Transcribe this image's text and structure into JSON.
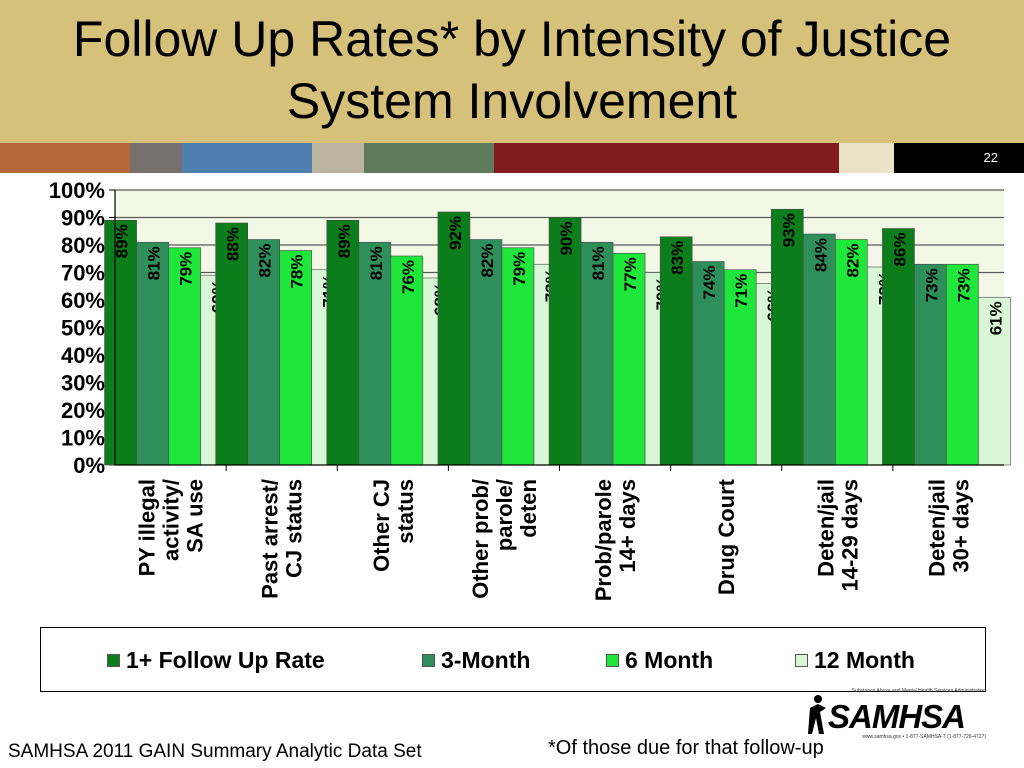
{
  "slide": {
    "title": "Follow Up Rates* by Intensity of Justice\nSystem Involvement",
    "slide_number": "22",
    "footer_source": "SAMHSA 2011 GAIN Summary Analytic Data Set",
    "footnote": "*Of those due for that follow-up",
    "logo": {
      "wordmark": "SAMHSA",
      "tagline": "Substance Abuse and Mental Health Services Administration",
      "contact": "www.samhsa.gov • 1-877-SAMHSA-7 (1-877-726-4727)"
    },
    "stripe_colors": [
      "#b5673b",
      "#76706e",
      "#4f7fae",
      "#bcb3a1",
      "#5f7b5c",
      "#7f1b1f",
      "#e9e2c7",
      "#000000"
    ]
  },
  "chart_data": {
    "type": "bar",
    "categories": [
      "PY illegal activity/ SA use",
      "Past arrest/ CJ status",
      "Other CJ status",
      "Other prob/ parole/ deten",
      "Prob/parole 14+ days",
      "Drug Court",
      "Deten/jail 14-29 days",
      "Deten/jail 30+ days"
    ],
    "category_lines": [
      [
        "PY illegal",
        "activity/",
        "SA use"
      ],
      [
        "Past arrest/",
        "CJ status"
      ],
      [
        "Other CJ",
        "status"
      ],
      [
        "Other prob/",
        "parole/",
        "deten"
      ],
      [
        "Prob/parole",
        "14+ days"
      ],
      [
        "Drug Court"
      ],
      [
        "Deten/jail",
        "14-29 days"
      ],
      [
        "Deten/jail",
        "30+ days"
      ]
    ],
    "series": [
      {
        "name": "1+ Follow Up Rate",
        "color": "#0b7d1a",
        "values": [
          89,
          88,
          89,
          92,
          90,
          83,
          93,
          86
        ]
      },
      {
        "name": "3-Month",
        "color": "#2f8f5b",
        "values": [
          81,
          82,
          81,
          82,
          81,
          74,
          84,
          73
        ]
      },
      {
        "name": "6 Month",
        "color": "#1ee63a",
        "values": [
          79,
          78,
          76,
          79,
          77,
          71,
          82,
          73
        ]
      },
      {
        "name": "12 Month",
        "color": "#d9f7d7",
        "values": [
          69,
          71,
          68,
          73,
          70,
          66,
          72,
          61
        ]
      }
    ],
    "ylim": [
      0,
      100
    ],
    "y_ticks": [
      "0%",
      "10%",
      "20%",
      "30%",
      "40%",
      "50%",
      "60%",
      "70%",
      "80%",
      "90%",
      "100%"
    ],
    "value_suffix": "%",
    "plot_background": "#f2f7e6",
    "grid": true,
    "legend_position": "bottom"
  }
}
